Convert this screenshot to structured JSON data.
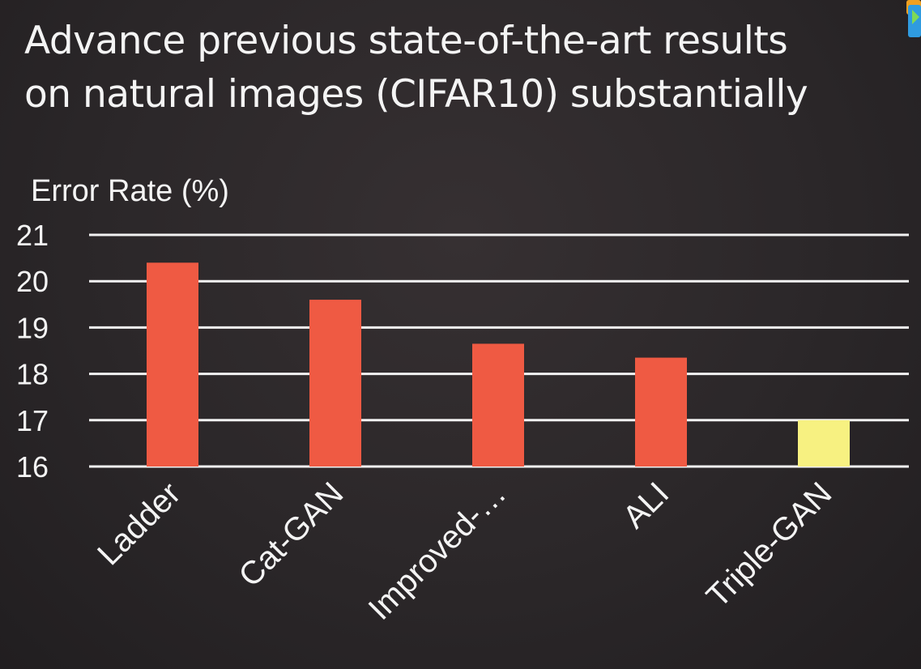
{
  "slide": {
    "title_lines": [
      "Advance previous state-of-the-art results",
      "on natural images (CIFAR10) substantially"
    ]
  },
  "colors": {
    "background": "#2a2628",
    "text": "#f4f4f4",
    "gridline": "#f2f2f2",
    "bar_default": "#ef5a43",
    "bar_highlight": "#f7f181"
  },
  "icons": [
    "corner-logo-icon"
  ],
  "chart_data": {
    "type": "bar",
    "ylabel": "Error Rate (%)",
    "categories": [
      "Ladder",
      "Cat-GAN",
      "Improved-…",
      "ALI",
      "Triple-GAN"
    ],
    "values": [
      20.4,
      19.6,
      18.65,
      18.35,
      17.0
    ],
    "highlight": "Triple-GAN",
    "ylim": [
      16,
      21
    ],
    "yticks": [
      16,
      17,
      18,
      19,
      20,
      21
    ],
    "grid": true,
    "legend": "none"
  }
}
